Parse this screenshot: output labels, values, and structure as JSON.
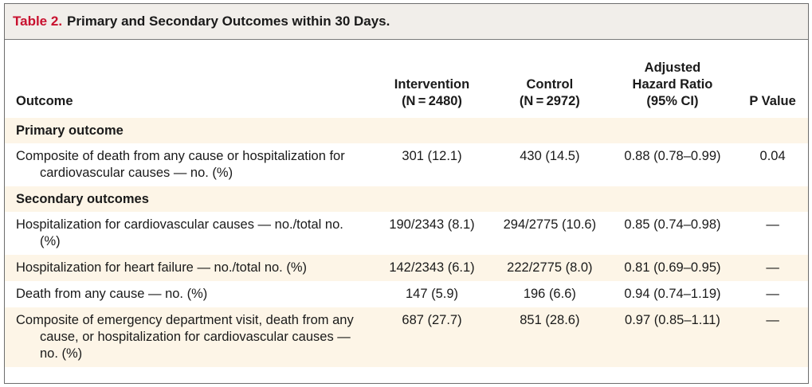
{
  "title": {
    "number": "Table 2.",
    "text": "Primary and Secondary Outcomes within 30 Days."
  },
  "columns": {
    "outcome": "Outcome",
    "intervention": [
      "Intervention",
      "(N = 2480)"
    ],
    "control": [
      "Control",
      "(N = 2972)"
    ],
    "hazard": [
      "Adjusted",
      "Hazard Ratio",
      "(95% CI)"
    ],
    "p": "P Value"
  },
  "sections": [
    {
      "label": "Primary outcome",
      "rows": [
        {
          "outcome": "Composite of death from any cause or hospitalization for cardiovascular causes — no. (%)",
          "intervention": "301 (12.1)",
          "control": "430 (14.5)",
          "hr": "0.88 (0.78–0.99)",
          "p": "0.04",
          "shaded": false
        }
      ]
    },
    {
      "label": "Secondary outcomes",
      "rows": [
        {
          "outcome": "Hospitalization for cardiovascular causes — no./total no. (%)",
          "intervention": "190/2343 (8.1)",
          "control": "294/2775 (10.6)",
          "hr": "0.85 (0.74–0.98)",
          "p": "—",
          "shaded": false
        },
        {
          "outcome": "Hospitalization for heart failure — no./total no. (%)",
          "intervention": "142/2343 (6.1)",
          "control": "222/2775 (8.0)",
          "hr": "0.81 (0.69–0.95)",
          "p": "—",
          "shaded": true
        },
        {
          "outcome": "Death from any cause — no. (%)",
          "intervention": "147 (5.9)",
          "control": "196 (6.6)",
          "hr": "0.94 (0.74–1.19)",
          "p": "—",
          "shaded": false
        },
        {
          "outcome": "Composite of emergency department visit, death from any cause, or hospitalization for cardiovascular causes — no. (%)",
          "intervention": "687 (27.7)",
          "control": "851 (28.6)",
          "hr": "0.97 (0.85–1.11)",
          "p": "—",
          "shaded": true
        }
      ]
    }
  ],
  "colors": {
    "title_bar": "#f1eeea",
    "title_number": "#c8102e",
    "row_shade": "#fdf5e7"
  }
}
